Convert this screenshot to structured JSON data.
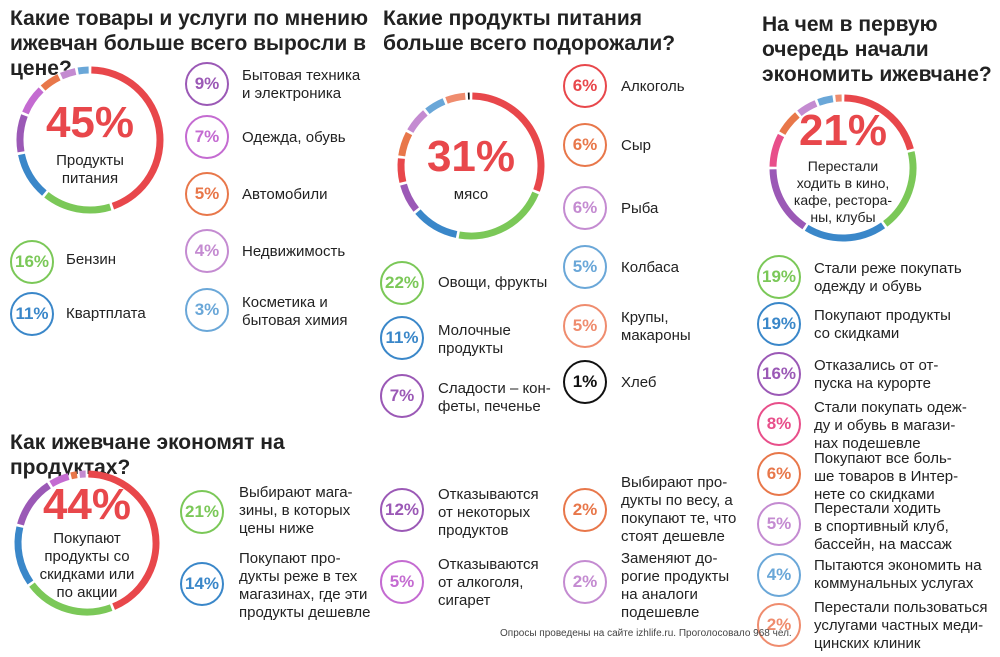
{
  "colors": {
    "red": "#e8474b",
    "green": "#7bc858",
    "blue": "#3a87c9",
    "purple": "#9b59b6",
    "orange": "#e8774a",
    "violet": "#c48bd1",
    "lightblue": "#6aa7d8",
    "lavender": "#a78bd0",
    "salmon": "#ef8c6e",
    "black": "#111111",
    "pink": "#e84f8a"
  },
  "chart_data": [
    {
      "type": "pie",
      "title": "Какие товары и услуги по мнению ижевчан больше всего выросли в цене?",
      "center": {
        "value": "45%",
        "label": "Продукты\nпитания"
      },
      "slices": [
        {
          "label": "Продукты питания",
          "value": 45,
          "display": "45%",
          "color": "#e8474b"
        },
        {
          "label": "Бензин",
          "value": 16,
          "display": "16%",
          "color": "#7bc858"
        },
        {
          "label": "Квартплата",
          "value": 11,
          "display": "11%",
          "color": "#3a87c9"
        },
        {
          "label": "Бытовая техника\nи электроника",
          "value": 9,
          "display": "9%",
          "color": "#9b59b6"
        },
        {
          "label": "Одежда, обувь",
          "value": 7,
          "display": "7%",
          "color": "#c46bd1"
        },
        {
          "label": "Автомобили",
          "value": 5,
          "display": "5%",
          "color": "#e8774a"
        },
        {
          "label": "Недвижимость",
          "value": 4,
          "display": "4%",
          "color": "#c48bd1"
        },
        {
          "label": "Косметика и\nбытовая химия",
          "value": 3,
          "display": "3%",
          "color": "#6aa7d8"
        }
      ]
    },
    {
      "type": "pie",
      "title": "Какие продукты питания больше всего подорожали?",
      "center": {
        "value": "31%",
        "label": "мясо"
      },
      "slices": [
        {
          "label": "мясо",
          "value": 31,
          "display": "31%",
          "color": "#e8474b"
        },
        {
          "label": "Овощи, фрукты",
          "value": 22,
          "display": "22%",
          "color": "#7bc858"
        },
        {
          "label": "Молочные\nпродукты",
          "value": 11,
          "display": "11%",
          "color": "#3a87c9"
        },
        {
          "label": "Сладости – кон-\nфеты, печенье",
          "value": 7,
          "display": "7%",
          "color": "#9b59b6"
        },
        {
          "label": "Алкоголь",
          "value": 6,
          "display": "6%",
          "color": "#e8474b"
        },
        {
          "label": "Сыр",
          "value": 6,
          "display": "6%",
          "color": "#e8774a"
        },
        {
          "label": "Рыба",
          "value": 6,
          "display": "6%",
          "color": "#c48bd1"
        },
        {
          "label": "Колбаса",
          "value": 5,
          "display": "5%",
          "color": "#6aa7d8"
        },
        {
          "label": "Крупы,\nмакароны",
          "value": 5,
          "display": "5%",
          "color": "#ef8c6e"
        },
        {
          "label": "Хлеб",
          "value": 1,
          "display": "1%",
          "color": "#111111"
        }
      ]
    },
    {
      "type": "pie",
      "title": "На чем в первую очередь начали экономить ижевчане?",
      "center": {
        "value": "21%",
        "label": "Перестали\nходить в кино,\nкафе, рестора-\nны, клубы"
      },
      "slices": [
        {
          "label": "Перестали ходить в кино, кафе, рестораны, клубы",
          "value": 21,
          "display": "21%",
          "color": "#e8474b"
        },
        {
          "label": "Стали реже покупать\nодежду и обувь",
          "value": 19,
          "display": "19%",
          "color": "#7bc858"
        },
        {
          "label": "Покупают продукты\nсо скидками",
          "value": 19,
          "display": "19%",
          "color": "#3a87c9"
        },
        {
          "label": "Отказались от от-\nпуска на курорте",
          "value": 16,
          "display": "16%",
          "color": "#9b59b6"
        },
        {
          "label": "Стали покупать одеж-\nду и обувь в магази-\nнах подешевле",
          "value": 8,
          "display": "8%",
          "color": "#e84f8a"
        },
        {
          "label": "Покупают все боль-\nше товаров в Интер-\nнете со скидками",
          "value": 6,
          "display": "6%",
          "color": "#e8774a"
        },
        {
          "label": "Перестали ходить\nв спортивный клуб,\nбассейн, на массаж",
          "value": 5,
          "display": "5%",
          "color": "#c48bd1"
        },
        {
          "label": "Пытаются экономить на\nкоммунальных услугах",
          "value": 4,
          "display": "4%",
          "color": "#6aa7d8"
        },
        {
          "label": "Перестали пользоваться\nуслугами частных меди-\nцинских клиник",
          "value": 2,
          "display": "2%",
          "color": "#ef8c6e"
        }
      ]
    },
    {
      "type": "pie",
      "title": "Как ижевчане экономят на продуктах?",
      "center": {
        "value": "44%",
        "label": "Покупают\nпродукты со\nскидками или\nпо акции"
      },
      "slices": [
        {
          "label": "Покупают продукты со скидками или по акции",
          "value": 44,
          "display": "44%",
          "color": "#e8474b"
        },
        {
          "label": "Выбирают мага-\nзины, в которых\nцены ниже",
          "value": 21,
          "display": "21%",
          "color": "#7bc858"
        },
        {
          "label": "Покупают про-\nдукты реже в тех\nмагазинах, где эти\nпродукты дешевле",
          "value": 14,
          "display": "14%",
          "color": "#3a87c9"
        },
        {
          "label": "Отказываются\nот некоторых\nпродуктов",
          "value": 12,
          "display": "12%",
          "color": "#9b59b6"
        },
        {
          "label": "Отказываются\nот алкоголя,\nсигарет",
          "value": 5,
          "display": "5%",
          "color": "#c46bd1"
        },
        {
          "label": "Выбирают про-\nдукты по весу, а\nпокупают те, что\nстоят дешевле",
          "value": 2,
          "display": "2%",
          "color": "#e8774a"
        },
        {
          "label": "Заменяют до-\nрогие продукты\nна аналоги\nподешевле",
          "value": 2,
          "display": "2%",
          "color": "#c48bd1"
        }
      ]
    }
  ],
  "footer": "Опросы проведены на сайте izhlife.ru. Проголосовало 968 чел."
}
